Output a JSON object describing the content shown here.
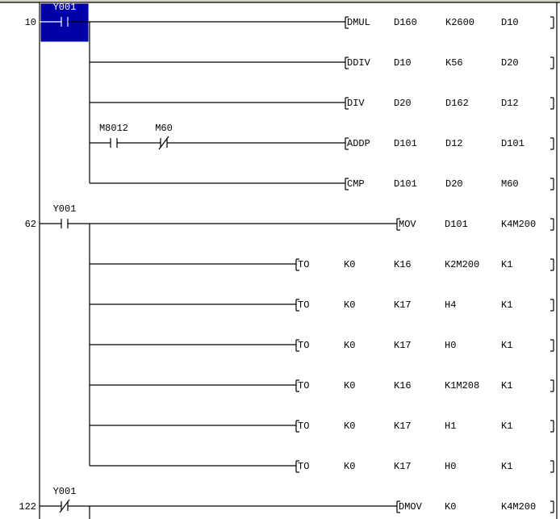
{
  "editor": {
    "cursor_color": "#0000a8",
    "rungs": [
      {
        "step": "10",
        "rows": [
          {
            "contacts": [
              {
                "device": "Y001",
                "type": "NO",
                "selected": true
              }
            ],
            "instruction": {
              "op": "DMUL",
              "args": [
                "D160",
                "K2600",
                "D10"
              ]
            }
          },
          {
            "contacts": [],
            "instruction": {
              "op": "DDIV",
              "args": [
                "D10",
                "K56",
                "D20"
              ]
            }
          },
          {
            "contacts": [],
            "instruction": {
              "op": "DIV",
              "args": [
                "D20",
                "D162",
                "D12"
              ]
            }
          },
          {
            "contacts": [
              {
                "device": "M8012",
                "type": "NO"
              },
              {
                "device": "M60",
                "type": "NC"
              }
            ],
            "instruction": {
              "op": "ADDP",
              "args": [
                "D101",
                "D12",
                "D101"
              ]
            }
          },
          {
            "contacts": [],
            "instruction": {
              "op": "CMP",
              "args": [
                "D101",
                "D20",
                "M60"
              ]
            }
          }
        ]
      },
      {
        "step": "62",
        "rows": [
          {
            "contacts": [
              {
                "device": "Y001",
                "type": "NO"
              }
            ],
            "instruction": {
              "op": "MOV",
              "args": [
                "D101",
                "K4M200"
              ]
            }
          },
          {
            "contacts": [],
            "instruction": {
              "op": "TO",
              "args": [
                "K0",
                "K16",
                "K2M200",
                "K1"
              ]
            }
          },
          {
            "contacts": [],
            "instruction": {
              "op": "TO",
              "args": [
                "K0",
                "K17",
                "H4",
                "K1"
              ]
            }
          },
          {
            "contacts": [],
            "instruction": {
              "op": "TO",
              "args": [
                "K0",
                "K17",
                "H0",
                "K1"
              ]
            }
          },
          {
            "contacts": [],
            "instruction": {
              "op": "TO",
              "args": [
                "K0",
                "K16",
                "K1M208",
                "K1"
              ]
            }
          },
          {
            "contacts": [],
            "instruction": {
              "op": "TO",
              "args": [
                "K0",
                "K17",
                "H1",
                "K1"
              ]
            }
          },
          {
            "contacts": [],
            "instruction": {
              "op": "TO",
              "args": [
                "K0",
                "K17",
                "H0",
                "K1"
              ]
            }
          }
        ]
      },
      {
        "step": "122",
        "rows": [
          {
            "contacts": [
              {
                "device": "Y001",
                "type": "NC"
              }
            ],
            "instruction": {
              "op": "DMOV",
              "args": [
                "K0",
                "K4M200"
              ]
            }
          }
        ]
      }
    ]
  }
}
